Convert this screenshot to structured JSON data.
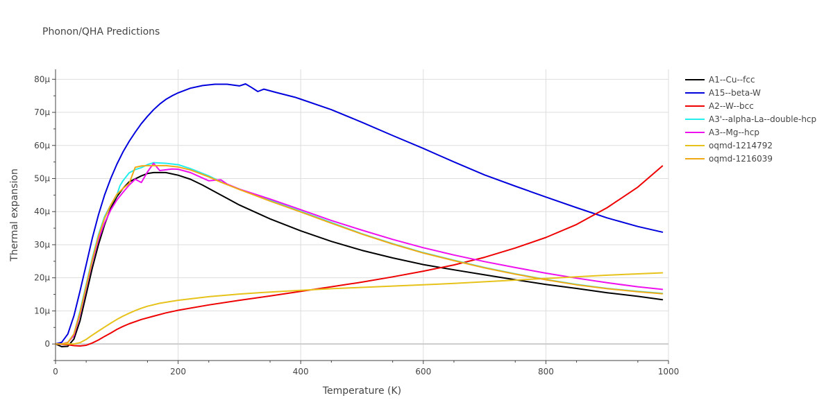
{
  "chart_data": {
    "type": "line",
    "title": "Phonon/QHA Predictions",
    "xlabel": "Temperature (K)",
    "ylabel": "Thermal expansion",
    "xlim": [
      0,
      1000
    ],
    "ylim": [
      -5,
      83
    ],
    "x_ticks": [
      0,
      200,
      400,
      600,
      800,
      1000
    ],
    "x_tick_labels": [
      "0",
      "200",
      "400",
      "600",
      "800",
      "1000"
    ],
    "y_ticks": [
      0,
      10,
      20,
      30,
      40,
      50,
      60,
      70,
      80
    ],
    "y_tick_labels": [
      "0",
      "10μ",
      "20μ",
      "30μ",
      "40μ",
      "50μ",
      "60μ",
      "70μ",
      "80μ"
    ],
    "grid": true,
    "legend_position": "right",
    "series": [
      {
        "name": "A1--Cu--fcc",
        "color": "#000000",
        "points": [
          [
            0,
            0
          ],
          [
            10,
            -0.8
          ],
          [
            20,
            -0.7
          ],
          [
            30,
            1.5
          ],
          [
            40,
            7
          ],
          [
            50,
            15
          ],
          [
            60,
            23
          ],
          [
            70,
            30
          ],
          [
            80,
            36
          ],
          [
            90,
            41
          ],
          [
            100,
            44.5
          ],
          [
            110,
            47
          ],
          [
            120,
            49
          ],
          [
            140,
            50.8
          ],
          [
            150,
            51.5
          ],
          [
            160,
            51.8
          ],
          [
            180,
            51.8
          ],
          [
            200,
            51
          ],
          [
            220,
            49.8
          ],
          [
            240,
            48
          ],
          [
            260,
            46
          ],
          [
            280,
            44
          ],
          [
            300,
            42
          ],
          [
            350,
            37.8
          ],
          [
            400,
            34.2
          ],
          [
            450,
            31
          ],
          [
            500,
            28.3
          ],
          [
            550,
            26
          ],
          [
            600,
            24
          ],
          [
            650,
            22.4
          ],
          [
            700,
            20.9
          ],
          [
            750,
            19.4
          ],
          [
            800,
            18
          ],
          [
            850,
            16.8
          ],
          [
            900,
            15.5
          ],
          [
            950,
            14.4
          ],
          [
            990,
            13.4
          ]
        ]
      },
      {
        "name": "A15--beta-W",
        "color": "#0000dd",
        "points": [
          [
            0,
            0
          ],
          [
            10,
            0.5
          ],
          [
            20,
            3
          ],
          [
            30,
            8.5
          ],
          [
            40,
            16
          ],
          [
            50,
            24
          ],
          [
            60,
            32
          ],
          [
            70,
            39
          ],
          [
            80,
            45
          ],
          [
            90,
            50
          ],
          [
            100,
            54.3
          ],
          [
            110,
            58
          ],
          [
            120,
            61.2
          ],
          [
            130,
            64
          ],
          [
            140,
            66.6
          ],
          [
            150,
            68.8
          ],
          [
            160,
            70.8
          ],
          [
            170,
            72.5
          ],
          [
            180,
            73.9
          ],
          [
            190,
            75
          ],
          [
            200,
            75.9
          ],
          [
            220,
            77.3
          ],
          [
            240,
            78.1
          ],
          [
            260,
            78.5
          ],
          [
            280,
            78.5
          ],
          [
            300,
            78
          ],
          [
            310,
            78.6
          ],
          [
            320,
            77.5
          ],
          [
            330,
            76.3
          ],
          [
            340,
            77
          ],
          [
            360,
            76
          ],
          [
            390,
            74.6
          ],
          [
            400,
            74
          ],
          [
            450,
            70.8
          ],
          [
            500,
            67
          ],
          [
            550,
            63
          ],
          [
            600,
            59.1
          ],
          [
            650,
            55
          ],
          [
            700,
            51.1
          ],
          [
            750,
            47.7
          ],
          [
            800,
            44.4
          ],
          [
            850,
            41.2
          ],
          [
            900,
            38.1
          ],
          [
            950,
            35.5
          ],
          [
            990,
            33.8
          ]
        ]
      },
      {
        "name": "A2--W--bcc",
        "color": "#ee0000",
        "points": [
          [
            0,
            0
          ],
          [
            20,
            -0.2
          ],
          [
            30,
            -0.5
          ],
          [
            40,
            -0.6
          ],
          [
            50,
            -0.4
          ],
          [
            60,
            0.3
          ],
          [
            70,
            1.2
          ],
          [
            80,
            2.3
          ],
          [
            90,
            3.3
          ],
          [
            100,
            4.4
          ],
          [
            110,
            5.3
          ],
          [
            120,
            6.1
          ],
          [
            140,
            7.4
          ],
          [
            160,
            8.4
          ],
          [
            180,
            9.4
          ],
          [
            200,
            10.2
          ],
          [
            250,
            11.8
          ],
          [
            300,
            13.2
          ],
          [
            350,
            14.5
          ],
          [
            400,
            15.9
          ],
          [
            450,
            17.3
          ],
          [
            500,
            18.7
          ],
          [
            550,
            20.3
          ],
          [
            600,
            22
          ],
          [
            650,
            23.9
          ],
          [
            700,
            26.2
          ],
          [
            750,
            29
          ],
          [
            800,
            32.2
          ],
          [
            850,
            36.1
          ],
          [
            900,
            41.2
          ],
          [
            950,
            47.4
          ],
          [
            990,
            53.8
          ]
        ]
      },
      {
        "name": "A3'--alpha-La--double-hcp",
        "color": "#22eeee",
        "points": [
          [
            0,
            0
          ],
          [
            10,
            0
          ],
          [
            20,
            0.5
          ],
          [
            30,
            3
          ],
          [
            40,
            10
          ],
          [
            50,
            18
          ],
          [
            60,
            26
          ],
          [
            70,
            33
          ],
          [
            80,
            38.5
          ],
          [
            90,
            42
          ],
          [
            100,
            45
          ],
          [
            105,
            47.8
          ],
          [
            110,
            49.3
          ],
          [
            120,
            51.7
          ],
          [
            130,
            52.7
          ],
          [
            140,
            53.3
          ],
          [
            150,
            54.2
          ],
          [
            160,
            54.8
          ],
          [
            180,
            54.6
          ],
          [
            200,
            54.2
          ],
          [
            220,
            53
          ],
          [
            250,
            50.8
          ],
          [
            270,
            49
          ],
          [
            300,
            46.8
          ],
          [
            350,
            43.4
          ],
          [
            400,
            40.1
          ],
          [
            450,
            36.7
          ],
          [
            500,
            33.3
          ],
          [
            550,
            30.3
          ],
          [
            600,
            27.6
          ],
          [
            650,
            25.3
          ],
          [
            700,
            23.1
          ],
          [
            750,
            21.2
          ],
          [
            800,
            19.5
          ],
          [
            850,
            18
          ],
          [
            900,
            16.8
          ],
          [
            950,
            15.9
          ],
          [
            990,
            15.3
          ]
        ]
      },
      {
        "name": "A3--Mg--hcp",
        "color": "#ee11ee",
        "points": [
          [
            0,
            0
          ],
          [
            10,
            0
          ],
          [
            20,
            0.5
          ],
          [
            30,
            2.5
          ],
          [
            40,
            9
          ],
          [
            50,
            17
          ],
          [
            60,
            25
          ],
          [
            70,
            31.5
          ],
          [
            80,
            36.5
          ],
          [
            90,
            40.5
          ],
          [
            100,
            43.5
          ],
          [
            110,
            45.8
          ],
          [
            120,
            48
          ],
          [
            130,
            49.8
          ],
          [
            140,
            48.8
          ],
          [
            150,
            52
          ],
          [
            160,
            54.6
          ],
          [
            170,
            52.4
          ],
          [
            190,
            52.9
          ],
          [
            200,
            52.8
          ],
          [
            220,
            51.8
          ],
          [
            250,
            49.3
          ],
          [
            260,
            49.5
          ],
          [
            270,
            49.6
          ],
          [
            280,
            48.3
          ],
          [
            300,
            46.8
          ],
          [
            350,
            43.8
          ],
          [
            400,
            40.6
          ],
          [
            450,
            37.3
          ],
          [
            500,
            34.4
          ],
          [
            550,
            31.6
          ],
          [
            600,
            29.1
          ],
          [
            650,
            26.9
          ],
          [
            700,
            24.9
          ],
          [
            750,
            23.1
          ],
          [
            800,
            21.4
          ],
          [
            850,
            19.9
          ],
          [
            900,
            18.5
          ],
          [
            950,
            17.3
          ],
          [
            990,
            16.5
          ]
        ]
      },
      {
        "name": "oqmd-1214792",
        "color": "#e6c21a",
        "points": [
          [
            0,
            0
          ],
          [
            20,
            0
          ],
          [
            30,
            0
          ],
          [
            40,
            0.4
          ],
          [
            50,
            1.4
          ],
          [
            60,
            2.7
          ],
          [
            70,
            3.9
          ],
          [
            80,
            5.1
          ],
          [
            90,
            6.3
          ],
          [
            100,
            7.4
          ],
          [
            110,
            8.4
          ],
          [
            120,
            9.3
          ],
          [
            130,
            10.1
          ],
          [
            140,
            10.8
          ],
          [
            150,
            11.4
          ],
          [
            170,
            12.3
          ],
          [
            200,
            13.2
          ],
          [
            250,
            14.3
          ],
          [
            300,
            15.1
          ],
          [
            350,
            15.7
          ],
          [
            400,
            16.2
          ],
          [
            450,
            16.7
          ],
          [
            500,
            17.1
          ],
          [
            550,
            17.5
          ],
          [
            600,
            17.9
          ],
          [
            650,
            18.3
          ],
          [
            700,
            18.8
          ],
          [
            750,
            19.3
          ],
          [
            800,
            19.8
          ],
          [
            850,
            20.3
          ],
          [
            900,
            20.8
          ],
          [
            950,
            21.2
          ],
          [
            990,
            21.5
          ]
        ]
      },
      {
        "name": "oqmd-1216039",
        "color": "#f0a814",
        "points": [
          [
            0,
            0
          ],
          [
            10,
            0
          ],
          [
            20,
            0.4
          ],
          [
            30,
            3
          ],
          [
            40,
            9.5
          ],
          [
            50,
            17.5
          ],
          [
            60,
            25.5
          ],
          [
            70,
            32.5
          ],
          [
            80,
            38
          ],
          [
            90,
            42
          ],
          [
            100,
            45.2
          ],
          [
            110,
            47
          ],
          [
            120,
            48.5
          ],
          [
            130,
            53.4
          ],
          [
            140,
            53.8
          ],
          [
            150,
            53.9
          ],
          [
            160,
            53.9
          ],
          [
            180,
            53.9
          ],
          [
            200,
            53.5
          ],
          [
            220,
            52.6
          ],
          [
            250,
            50.5
          ],
          [
            270,
            48.9
          ],
          [
            300,
            46.7
          ],
          [
            350,
            43.2
          ],
          [
            400,
            39.9
          ],
          [
            450,
            36.5
          ],
          [
            500,
            33.2
          ],
          [
            550,
            30.2
          ],
          [
            600,
            27.5
          ],
          [
            650,
            25.2
          ],
          [
            700,
            23
          ],
          [
            750,
            21.1
          ],
          [
            800,
            19.4
          ],
          [
            850,
            17.9
          ],
          [
            900,
            16.7
          ],
          [
            950,
            15.8
          ],
          [
            990,
            15.2
          ]
        ]
      }
    ]
  }
}
